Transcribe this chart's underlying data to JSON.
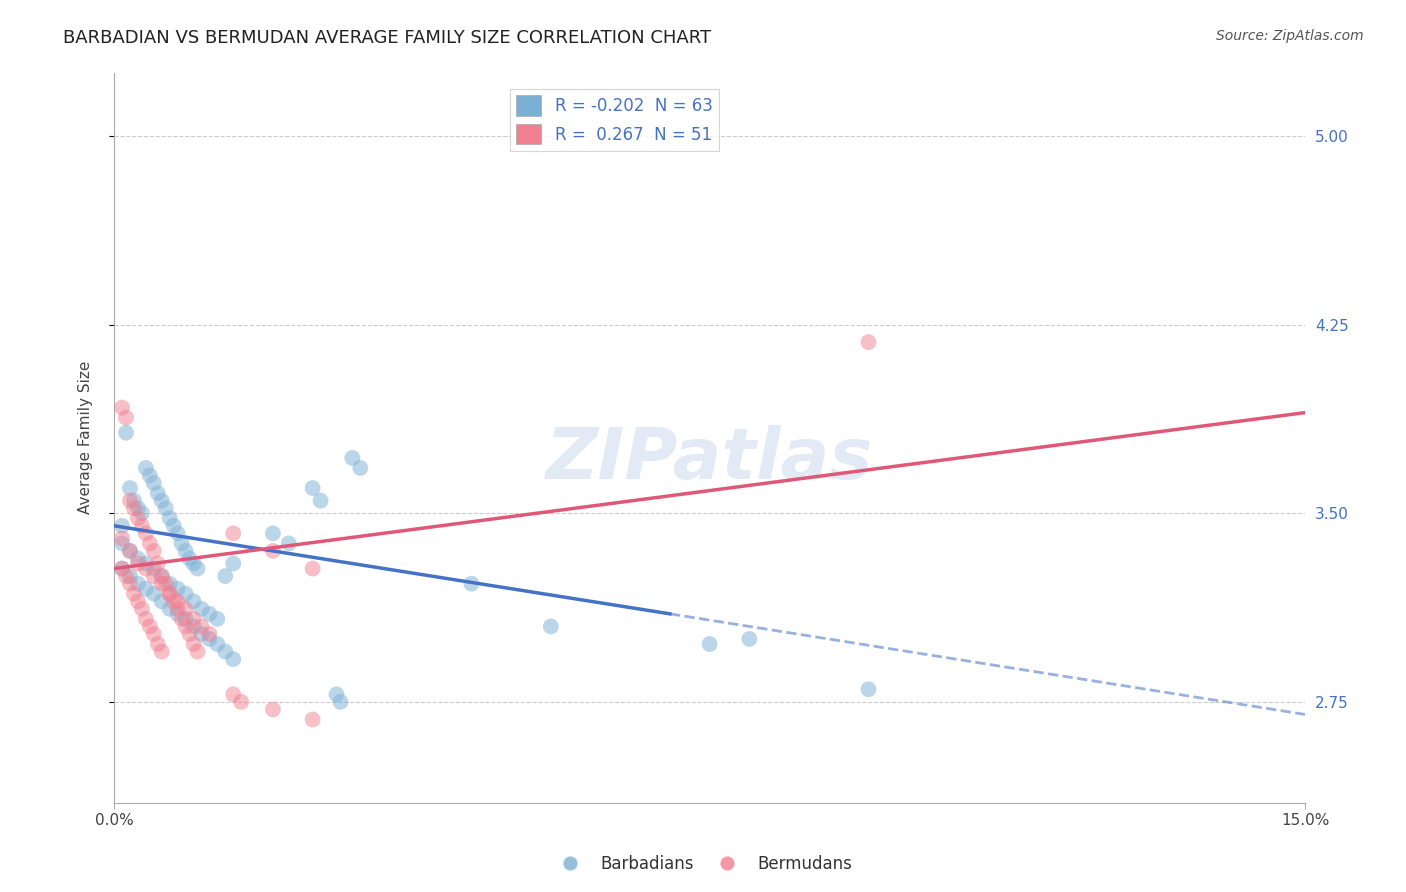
{
  "title": "BARBADIAN VS BERMUDAN AVERAGE FAMILY SIZE CORRELATION CHART",
  "source": "Source: ZipAtlas.com",
  "ylabel": "Average Family Size",
  "yticks_right": [
    2.75,
    3.5,
    4.25,
    5.0
  ],
  "xlim": [
    0.0,
    15.0
  ],
  "ylim": [
    2.35,
    5.25
  ],
  "watermark": "ZIPatlas",
  "legend_label_1": "R = -0.202  N = 63",
  "legend_label_2": "R =  0.267  N = 51",
  "legend_labels": [
    "Barbadians",
    "Bermudans"
  ],
  "barbadian_color": "#7bafd4",
  "bermudan_color": "#f08090",
  "barbadian_line_color": "#4472c4",
  "bermudan_line_color": "#e05878",
  "background_color": "#ffffff",
  "grid_color": "#cccccc",
  "title_fontsize": 13,
  "axis_label_fontsize": 11,
  "tick_fontsize": 11,
  "legend_fontsize": 12,
  "source_fontsize": 10,
  "barbadian_points": [
    [
      0.1,
      3.45
    ],
    [
      0.15,
      3.82
    ],
    [
      0.2,
      3.6
    ],
    [
      0.25,
      3.55
    ],
    [
      0.3,
      3.52
    ],
    [
      0.35,
      3.5
    ],
    [
      0.4,
      3.68
    ],
    [
      0.45,
      3.65
    ],
    [
      0.5,
      3.62
    ],
    [
      0.55,
      3.58
    ],
    [
      0.6,
      3.55
    ],
    [
      0.65,
      3.52
    ],
    [
      0.7,
      3.48
    ],
    [
      0.75,
      3.45
    ],
    [
      0.8,
      3.42
    ],
    [
      0.85,
      3.38
    ],
    [
      0.9,
      3.35
    ],
    [
      0.95,
      3.32
    ],
    [
      1.0,
      3.3
    ],
    [
      1.05,
      3.28
    ],
    [
      0.1,
      3.38
    ],
    [
      0.2,
      3.35
    ],
    [
      0.3,
      3.32
    ],
    [
      0.4,
      3.3
    ],
    [
      0.5,
      3.28
    ],
    [
      0.6,
      3.25
    ],
    [
      0.7,
      3.22
    ],
    [
      0.8,
      3.2
    ],
    [
      0.9,
      3.18
    ],
    [
      1.0,
      3.15
    ],
    [
      1.1,
      3.12
    ],
    [
      1.2,
      3.1
    ],
    [
      1.3,
      3.08
    ],
    [
      1.4,
      3.25
    ],
    [
      1.5,
      3.3
    ],
    [
      0.1,
      3.28
    ],
    [
      0.2,
      3.25
    ],
    [
      0.3,
      3.22
    ],
    [
      0.4,
      3.2
    ],
    [
      0.5,
      3.18
    ],
    [
      0.6,
      3.15
    ],
    [
      0.7,
      3.12
    ],
    [
      0.8,
      3.1
    ],
    [
      0.9,
      3.08
    ],
    [
      1.0,
      3.05
    ],
    [
      1.1,
      3.02
    ],
    [
      1.2,
      3.0
    ],
    [
      1.3,
      2.98
    ],
    [
      1.4,
      2.95
    ],
    [
      1.5,
      2.92
    ],
    [
      2.5,
      3.6
    ],
    [
      2.6,
      3.55
    ],
    [
      3.0,
      3.72
    ],
    [
      3.1,
      3.68
    ],
    [
      2.0,
      3.42
    ],
    [
      2.2,
      3.38
    ],
    [
      2.8,
      2.78
    ],
    [
      2.85,
      2.75
    ],
    [
      4.5,
      3.22
    ],
    [
      5.5,
      3.05
    ],
    [
      7.5,
      2.98
    ],
    [
      8.0,
      3.0
    ],
    [
      9.5,
      2.8
    ]
  ],
  "bermudan_points": [
    [
      0.1,
      3.92
    ],
    [
      0.15,
      3.88
    ],
    [
      0.2,
      3.55
    ],
    [
      0.25,
      3.52
    ],
    [
      0.3,
      3.48
    ],
    [
      0.35,
      3.45
    ],
    [
      0.4,
      3.42
    ],
    [
      0.45,
      3.38
    ],
    [
      0.5,
      3.35
    ],
    [
      0.55,
      3.3
    ],
    [
      0.6,
      3.25
    ],
    [
      0.65,
      3.22
    ],
    [
      0.7,
      3.18
    ],
    [
      0.75,
      3.15
    ],
    [
      0.8,
      3.12
    ],
    [
      0.85,
      3.08
    ],
    [
      0.9,
      3.05
    ],
    [
      0.95,
      3.02
    ],
    [
      1.0,
      2.98
    ],
    [
      1.05,
      2.95
    ],
    [
      0.1,
      3.4
    ],
    [
      0.2,
      3.35
    ],
    [
      0.3,
      3.3
    ],
    [
      0.4,
      3.28
    ],
    [
      0.5,
      3.25
    ],
    [
      0.6,
      3.22
    ],
    [
      0.7,
      3.18
    ],
    [
      0.8,
      3.15
    ],
    [
      0.9,
      3.12
    ],
    [
      1.0,
      3.08
    ],
    [
      1.1,
      3.05
    ],
    [
      1.2,
      3.02
    ],
    [
      0.1,
      3.28
    ],
    [
      0.15,
      3.25
    ],
    [
      0.2,
      3.22
    ],
    [
      0.25,
      3.18
    ],
    [
      0.3,
      3.15
    ],
    [
      0.35,
      3.12
    ],
    [
      0.4,
      3.08
    ],
    [
      0.45,
      3.05
    ],
    [
      0.5,
      3.02
    ],
    [
      0.55,
      2.98
    ],
    [
      0.6,
      2.95
    ],
    [
      1.5,
      3.42
    ],
    [
      2.0,
      3.35
    ],
    [
      2.5,
      3.28
    ],
    [
      1.5,
      2.78
    ],
    [
      1.6,
      2.75
    ],
    [
      2.0,
      2.72
    ],
    [
      2.5,
      2.68
    ],
    [
      9.5,
      4.18
    ]
  ]
}
